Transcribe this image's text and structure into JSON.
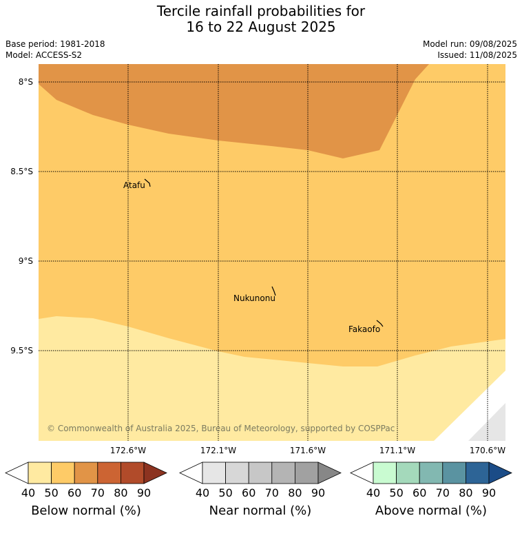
{
  "title": {
    "line1": "Tercile rainfall probabilities for",
    "line2": "16 to 22 August 2025"
  },
  "meta": {
    "base_period": "Base period: 1981-2018",
    "model": "Model: ACCESS-S2",
    "model_run": "Model run: 09/08/2025",
    "issued": "Issued: 11/08/2025"
  },
  "map": {
    "lat_labels": [
      "8°S",
      "8.5°S",
      "9°S",
      "9.5°S"
    ],
    "lon_labels": [
      "172.6°W",
      "172.1°W",
      "171.6°W",
      "171.1°W",
      "170.6°W"
    ],
    "places": [
      "Atafu",
      "Nukunonu",
      "Fakaofo"
    ],
    "copyright": "© Commonwealth of Australia 2025, Bureau of Meteorology, supported by COSPPac",
    "colors": {
      "below_40": "#ffeaa1",
      "below_50": "#fecb67",
      "below_60": "#e19447",
      "near_40": "#e6e6e6",
      "land_gap": "#ffffff"
    }
  },
  "colorbars": [
    {
      "title": "Below normal (%)",
      "ticks": [
        "40",
        "50",
        "60",
        "70",
        "80",
        "90"
      ],
      "colors": [
        "#ffffff",
        "#ffeaa1",
        "#fecb67",
        "#e19447",
        "#cc6433",
        "#b14b2a",
        "#8c3320"
      ]
    },
    {
      "title": "Near normal (%)",
      "ticks": [
        "40",
        "50",
        "60",
        "70",
        "80",
        "90"
      ],
      "colors": [
        "#ffffff",
        "#e6e6e6",
        "#d7d7d7",
        "#c7c7c7",
        "#b4b4b4",
        "#a1a1a1",
        "#878787"
      ]
    },
    {
      "title": "Above normal (%)",
      "ticks": [
        "40",
        "50",
        "60",
        "70",
        "80",
        "90"
      ],
      "colors": [
        "#ffffff",
        "#c9fbd1",
        "#a4d9bb",
        "#82b8b1",
        "#5a93a1",
        "#2d6496",
        "#1b4c87"
      ]
    }
  ]
}
